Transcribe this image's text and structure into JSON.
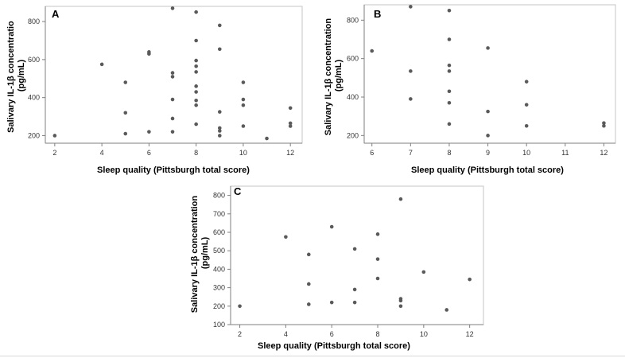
{
  "colors": {
    "point": "#5a5a5a",
    "axis": "#7f7f7f",
    "frame": "#c6c6c6"
  },
  "chart_data": [
    {
      "panel": "A",
      "type": "scatter",
      "xlabel": "Sleep quality (Pittsburgh total score)",
      "ylabel": [
        "Salivary IL-1β concentratio",
        "(pg/mL)"
      ],
      "xlim": [
        1.6,
        12.5
      ],
      "ylim": [
        160,
        880
      ],
      "xticks": [
        2,
        4,
        6,
        8,
        10,
        12
      ],
      "yticks": [
        200,
        400,
        600,
        800
      ],
      "points": [
        [
          2,
          200
        ],
        [
          4,
          575
        ],
        [
          5,
          480
        ],
        [
          5,
          320
        ],
        [
          5,
          210
        ],
        [
          6,
          640
        ],
        [
          6,
          630
        ],
        [
          6,
          220
        ],
        [
          7,
          870
        ],
        [
          7,
          530
        ],
        [
          7,
          510
        ],
        [
          7,
          390
        ],
        [
          7,
          290
        ],
        [
          7,
          220
        ],
        [
          8,
          850
        ],
        [
          8,
          700
        ],
        [
          8,
          595
        ],
        [
          8,
          565
        ],
        [
          8,
          535
        ],
        [
          8,
          460
        ],
        [
          8,
          430
        ],
        [
          8,
          385
        ],
        [
          8,
          360
        ],
        [
          8,
          260
        ],
        [
          9,
          780
        ],
        [
          9,
          655
        ],
        [
          9,
          325
        ],
        [
          9,
          240
        ],
        [
          9,
          225
        ],
        [
          9,
          200
        ],
        [
          10,
          480
        ],
        [
          10,
          390
        ],
        [
          10,
          360
        ],
        [
          10,
          250
        ],
        [
          11,
          185
        ],
        [
          12,
          345
        ],
        [
          12,
          265
        ],
        [
          12,
          250
        ]
      ]
    },
    {
      "panel": "B",
      "type": "scatter",
      "xlabel": "Sleep quality (Pittsburgh total score)",
      "ylabel": [
        "Salivary IL-1β concentration",
        "(pg/mL)"
      ],
      "xlim": [
        5.8,
        12.3
      ],
      "ylim": [
        160,
        880
      ],
      "xticks": [
        6,
        7,
        8,
        9,
        10,
        11,
        12
      ],
      "yticks": [
        200,
        400,
        600,
        800
      ],
      "points": [
        [
          6,
          640
        ],
        [
          7,
          870
        ],
        [
          7,
          535
        ],
        [
          7,
          390
        ],
        [
          8,
          850
        ],
        [
          8,
          700
        ],
        [
          8,
          565
        ],
        [
          8,
          535
        ],
        [
          8,
          430
        ],
        [
          8,
          370
        ],
        [
          8,
          260
        ],
        [
          9,
          655
        ],
        [
          9,
          325
        ],
        [
          9,
          200
        ],
        [
          10,
          480
        ],
        [
          10,
          360
        ],
        [
          10,
          250
        ],
        [
          12,
          265
        ],
        [
          12,
          250
        ]
      ]
    },
    {
      "panel": "C",
      "type": "scatter",
      "xlabel": "Sleep quality (Pittsburgh total score)",
      "ylabel": [
        "Salivary IL-1β concentration",
        "(pg/mL)"
      ],
      "xlim": [
        1.6,
        12.6
      ],
      "ylim": [
        100,
        850
      ],
      "xticks": [
        2,
        4,
        6,
        8,
        10,
        12
      ],
      "yticks": [
        100,
        200,
        300,
        400,
        500,
        600,
        700,
        800
      ],
      "points": [
        [
          2,
          200
        ],
        [
          4,
          575
        ],
        [
          5,
          480
        ],
        [
          5,
          320
        ],
        [
          5,
          210
        ],
        [
          6,
          630
        ],
        [
          6,
          220
        ],
        [
          7,
          510
        ],
        [
          7,
          290
        ],
        [
          7,
          220
        ],
        [
          8,
          590
        ],
        [
          8,
          455
        ],
        [
          8,
          350
        ],
        [
          9,
          780
        ],
        [
          9,
          240
        ],
        [
          9,
          230
        ],
        [
          9,
          200
        ],
        [
          10,
          385
        ],
        [
          11,
          180
        ],
        [
          12,
          345
        ]
      ]
    }
  ]
}
